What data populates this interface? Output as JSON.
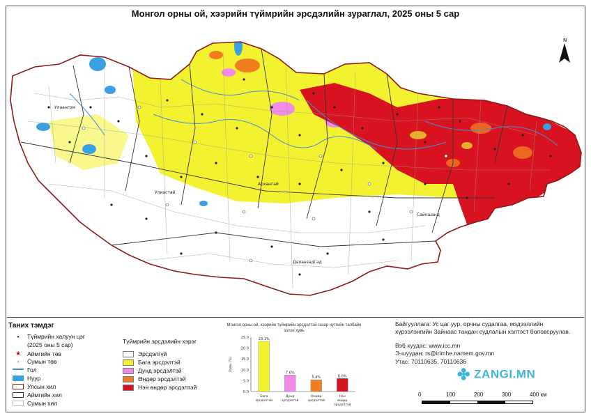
{
  "map_title": "Монгол орны ой, хээрийн түймрийн эрсдэлийн зураглал, 2025 оны 5 сар",
  "north_label": "N",
  "place_labels": [
    "Улаангом",
    "Улиастай",
    "Архангай",
    "Даланзадгад",
    "Сайншанд"
  ],
  "legend": {
    "title": "Таних тэмдэг",
    "items": [
      {
        "label": "Түймрийн халуун цэг",
        "symbol": "dot"
      },
      {
        "label": "(2025 оны 5 сар)",
        "symbol": "none"
      },
      {
        "label": "Аймгийн төв",
        "symbol": "star"
      },
      {
        "label": "Сумын төв",
        "symbol": "small-dot"
      },
      {
        "label": "Гол",
        "symbol": "river"
      },
      {
        "label": "Нуур",
        "symbol": "lake"
      },
      {
        "label": "Улсын хил",
        "symbol": "border-national"
      },
      {
        "label": "Аймгийн хил",
        "symbol": "border-aimag"
      },
      {
        "label": "Сумын хил",
        "symbol": "border-soum"
      }
    ]
  },
  "risk_legend": {
    "title": "Түймрийн эрсдэлийн хэрэг",
    "classes": [
      {
        "label": "Эрсдэлгүй",
        "color": "#ffffff"
      },
      {
        "label": "Бага эрсдэлтэй",
        "color": "#f2f230"
      },
      {
        "label": "Дунд эрсдэлтэй",
        "color": "#f08be6"
      },
      {
        "label": "Өндөр эрсдэлтэй",
        "color": "#f07d1f"
      },
      {
        "label": "Нэн өндөр эрсдэлтэй",
        "color": "#d8121f"
      }
    ]
  },
  "chart_data": {
    "type": "bar",
    "title": "Монгол орны ой, хээрийн түймрийн эрсдэлтэй газар нутгийн талбайн эзлэх хувь",
    "ylabel": "Хувь (%)",
    "categories": [
      "Бага эрсдэлтэй",
      "Дунд эрсдэлтэй",
      "Өндөр эрсдэлтэй",
      "Нэн өндөр эрсдэлтэй"
    ],
    "values": [
      23.1,
      7.6,
      5.4,
      6.0
    ],
    "value_labels": [
      "23.1%",
      "7.6%",
      "5.4%",
      "6.0%"
    ],
    "colors": [
      "#f2f230",
      "#f08be6",
      "#f07d1f",
      "#d8121f"
    ],
    "ylim": [
      0,
      25
    ],
    "yticks": [
      "0.0",
      "5.0",
      "10.0",
      "15.0",
      "20.0",
      "25.0"
    ]
  },
  "info": {
    "organization": "Байгууллага: Ус цаг уур, орчны судалгаа, мэдээллийн хүрээлэнгийн Зайнаас тандан судлалын хэлтэст боловсруулав.",
    "website": "Вэб хуудас: www.icc.mn",
    "email": "Э-шуудан: rs@irimhe.namem.gov.mn",
    "phone": "Утас: 70110635, 70110636"
  },
  "scale_bar": {
    "ticks": [
      "0",
      "100",
      "200",
      "300",
      "400 км"
    ]
  },
  "watermark": "ZANGI.MN"
}
